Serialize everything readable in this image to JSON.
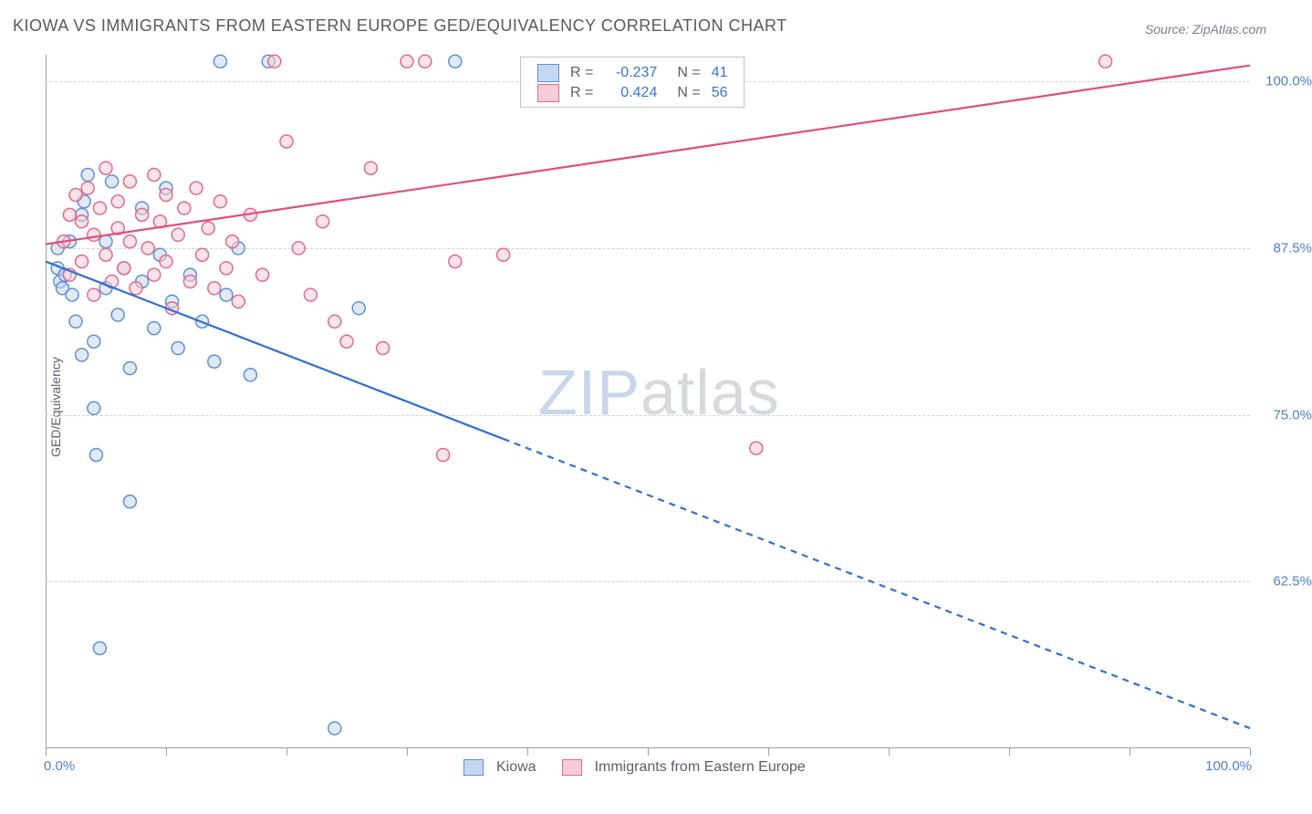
{
  "title": "KIOWA VS IMMIGRANTS FROM EASTERN EUROPE GED/EQUIVALENCY CORRELATION CHART",
  "source_label": "Source:",
  "source_value": "ZipAtlas.com",
  "y_axis_label": "GED/Equivalency",
  "watermark": {
    "part1": "ZIP",
    "part2": "atlas"
  },
  "colors": {
    "series1_fill": "#c6d8f1",
    "series1_stroke": "#5e8fd4",
    "series1_line": "#2e6fd0",
    "series2_fill": "#f6cdd7",
    "series2_stroke": "#e06a8a",
    "series2_line": "#e34d78",
    "text_accent": "#3a75d1",
    "grid": "#d0d3d7",
    "axis": "#9aa0a6",
    "title_color": "#555a60"
  },
  "chart": {
    "type": "scatter",
    "xlim": [
      0,
      100
    ],
    "ylim": [
      50,
      102
    ],
    "y_gridlines": [
      62.5,
      75.0,
      87.5,
      100.0
    ],
    "y_tick_labels": [
      "62.5%",
      "75.0%",
      "87.5%",
      "100.0%"
    ],
    "x_ticks": [
      0,
      10,
      20,
      30,
      40,
      50,
      60,
      70,
      80,
      90,
      100
    ],
    "x_left_label": "0.0%",
    "x_right_label": "100.0%",
    "marker_radius": 7,
    "marker_opacity": 0.55,
    "line_width": 2.2
  },
  "legend_top": {
    "rows": [
      {
        "swatch": "series1",
        "r_label": "R =",
        "r_value": "-0.237",
        "n_label": "N =",
        "n_value": "41"
      },
      {
        "swatch": "series2",
        "r_label": "R =",
        "r_value": "0.424",
        "n_label": "N =",
        "n_value": "56"
      }
    ]
  },
  "legend_bottom": {
    "items": [
      {
        "swatch": "series1",
        "label": "Kiowa"
      },
      {
        "swatch": "series2",
        "label": "Immigrants from Eastern Europe"
      }
    ]
  },
  "series": [
    {
      "id": "series1",
      "name": "Kiowa",
      "trend": {
        "x1": 0,
        "y1": 86.5,
        "x2": 100,
        "y2": 51.5,
        "solid_until_x": 38
      },
      "points": [
        [
          1.0,
          86.0
        ],
        [
          1.2,
          85.0
        ],
        [
          1.4,
          84.5
        ],
        [
          1.6,
          85.5
        ],
        [
          1.0,
          87.5
        ],
        [
          2.0,
          88.0
        ],
        [
          2.2,
          84.0
        ],
        [
          2.5,
          82.0
        ],
        [
          3.0,
          79.5
        ],
        [
          3.0,
          90.0
        ],
        [
          3.2,
          91.0
        ],
        [
          3.5,
          93.0
        ],
        [
          4.0,
          80.5
        ],
        [
          4.0,
          75.5
        ],
        [
          4.2,
          72.0
        ],
        [
          4.5,
          57.5
        ],
        [
          5.0,
          84.5
        ],
        [
          5.0,
          88.0
        ],
        [
          5.5,
          92.5
        ],
        [
          6.0,
          82.5
        ],
        [
          6.5,
          86.0
        ],
        [
          7.0,
          78.5
        ],
        [
          7.0,
          68.5
        ],
        [
          8.0,
          85.0
        ],
        [
          8.0,
          90.5
        ],
        [
          9.0,
          81.5
        ],
        [
          9.5,
          87.0
        ],
        [
          10.0,
          92.0
        ],
        [
          10.5,
          83.5
        ],
        [
          11.0,
          80.0
        ],
        [
          12.0,
          85.5
        ],
        [
          13.0,
          82.0
        ],
        [
          14.0,
          79.0
        ],
        [
          14.5,
          101.5
        ],
        [
          15.0,
          84.0
        ],
        [
          16.0,
          87.5
        ],
        [
          17.0,
          78.0
        ],
        [
          18.5,
          101.5
        ],
        [
          24.0,
          51.5
        ],
        [
          26.0,
          83.0
        ],
        [
          34.0,
          101.5
        ]
      ]
    },
    {
      "id": "series2",
      "name": "Immigrants from Eastern Europe",
      "trend": {
        "x1": 0,
        "y1": 87.8,
        "x2": 100,
        "y2": 101.2,
        "solid_until_x": 100
      },
      "points": [
        [
          1.5,
          88.0
        ],
        [
          2.0,
          90.0
        ],
        [
          2.0,
          85.5
        ],
        [
          2.5,
          91.5
        ],
        [
          3.0,
          89.5
        ],
        [
          3.0,
          86.5
        ],
        [
          3.5,
          92.0
        ],
        [
          4.0,
          88.5
        ],
        [
          4.0,
          84.0
        ],
        [
          4.5,
          90.5
        ],
        [
          5.0,
          93.5
        ],
        [
          5.0,
          87.0
        ],
        [
          5.5,
          85.0
        ],
        [
          6.0,
          91.0
        ],
        [
          6.0,
          89.0
        ],
        [
          6.5,
          86.0
        ],
        [
          7.0,
          92.5
        ],
        [
          7.0,
          88.0
        ],
        [
          7.5,
          84.5
        ],
        [
          8.0,
          90.0
        ],
        [
          8.5,
          87.5
        ],
        [
          9.0,
          93.0
        ],
        [
          9.0,
          85.5
        ],
        [
          9.5,
          89.5
        ],
        [
          10.0,
          91.5
        ],
        [
          10.0,
          86.5
        ],
        [
          10.5,
          83.0
        ],
        [
          11.0,
          88.5
        ],
        [
          11.5,
          90.5
        ],
        [
          12.0,
          85.0
        ],
        [
          12.5,
          92.0
        ],
        [
          13.0,
          87.0
        ],
        [
          13.5,
          89.0
        ],
        [
          14.0,
          84.5
        ],
        [
          14.5,
          91.0
        ],
        [
          15.0,
          86.0
        ],
        [
          15.5,
          88.0
        ],
        [
          16.0,
          83.5
        ],
        [
          17.0,
          90.0
        ],
        [
          18.0,
          85.5
        ],
        [
          19.0,
          101.5
        ],
        [
          20.0,
          95.5
        ],
        [
          21.0,
          87.5
        ],
        [
          22.0,
          84.0
        ],
        [
          23.0,
          89.5
        ],
        [
          24.0,
          82.0
        ],
        [
          25.0,
          80.5
        ],
        [
          27.0,
          93.5
        ],
        [
          28.0,
          80.0
        ],
        [
          30.0,
          101.5
        ],
        [
          31.5,
          101.5
        ],
        [
          33.0,
          72.0
        ],
        [
          34.0,
          86.5
        ],
        [
          38.0,
          87.0
        ],
        [
          88.0,
          101.5
        ],
        [
          59.0,
          72.5
        ]
      ]
    }
  ]
}
